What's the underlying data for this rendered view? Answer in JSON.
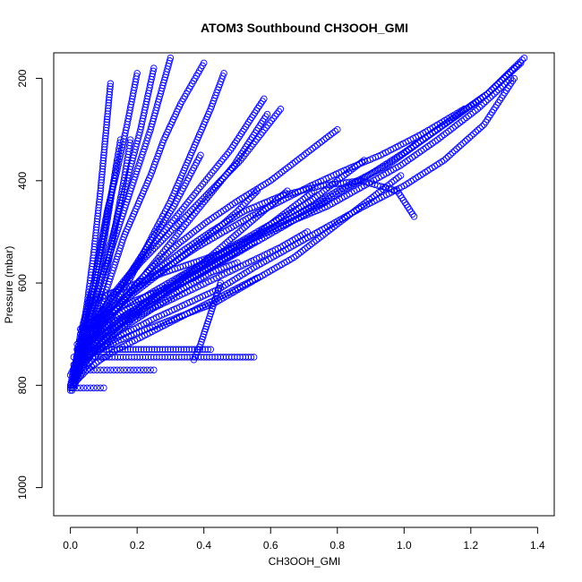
{
  "chart_data": {
    "type": "scatter",
    "title": "ATOM3 Southbound CH3OOH_GMI",
    "xlabel": "CH3OOH_GMI",
    "ylabel": "Pressure (mbar)",
    "xlim": [
      -0.05,
      1.45
    ],
    "ylim": [
      1055,
      150
    ],
    "y_reversed": true,
    "x_ticks": [
      0.0,
      0.2,
      0.4,
      0.6,
      0.8,
      1.0,
      1.2,
      1.4
    ],
    "x_tick_labels": [
      "0.0",
      "0.2",
      "0.4",
      "0.6",
      "0.8",
      "1.0",
      "1.2",
      "1.4"
    ],
    "y_ticks": [
      200,
      400,
      600,
      800,
      1000
    ],
    "y_tick_labels": [
      "200",
      "400",
      "600",
      "800",
      "1000"
    ],
    "grid": false,
    "marker": "open-circle",
    "color": "#0000FF",
    "series": [
      {
        "x": [
          0.01,
          0.015,
          0.02,
          0.03,
          0.04,
          0.06,
          0.09,
          0.12,
          0.15,
          0.18,
          0.21,
          0.24,
          0.27,
          0.3
        ],
        "y": [
          805,
          790,
          770,
          740,
          700,
          660,
          600,
          540,
          480,
          420,
          360,
          300,
          230,
          160
        ]
      },
      {
        "x": [
          0.01,
          0.02,
          0.03,
          0.05,
          0.07,
          0.1,
          0.13,
          0.16,
          0.2,
          0.24,
          0.28,
          0.33,
          0.4
        ],
        "y": [
          800,
          780,
          760,
          720,
          680,
          630,
          570,
          510,
          450,
          390,
          320,
          250,
          170
        ]
      },
      {
        "x": [
          0.005,
          0.01,
          0.02,
          0.03,
          0.05,
          0.07,
          0.09,
          0.11,
          0.14,
          0.17,
          0.2
        ],
        "y": [
          810,
          790,
          760,
          720,
          660,
          600,
          530,
          460,
          380,
          290,
          190
        ]
      },
      {
        "x": [
          0.01,
          0.03,
          0.06,
          0.1,
          0.15,
          0.2,
          0.26,
          0.33,
          0.41,
          0.5,
          0.6,
          0.7,
          0.8
        ],
        "y": [
          790,
          760,
          720,
          680,
          640,
          600,
          560,
          520,
          480,
          440,
          400,
          350,
          300
        ]
      },
      {
        "x": [
          0.02,
          0.05,
          0.1,
          0.17,
          0.25,
          0.34,
          0.44,
          0.55,
          0.67,
          0.8,
          0.95,
          1.1,
          1.25,
          1.36
        ],
        "y": [
          780,
          750,
          710,
          670,
          630,
          590,
          550,
          510,
          470,
          420,
          370,
          300,
          230,
          160
        ]
      },
      {
        "x": [
          0.01,
          0.04,
          0.09,
          0.15,
          0.22,
          0.3,
          0.38,
          0.47,
          0.56,
          0.65
        ],
        "y": [
          800,
          770,
          730,
          690,
          650,
          610,
          570,
          520,
          470,
          420
        ]
      },
      {
        "x": [
          0.02,
          0.08,
          0.16,
          0.25,
          0.35,
          0.45,
          0.55,
          0.66,
          0.77,
          0.88,
          1.0,
          1.12,
          1.24,
          1.33
        ],
        "y": [
          760,
          730,
          700,
          670,
          640,
          610,
          570,
          530,
          490,
          450,
          410,
          360,
          290,
          200
        ]
      },
      {
        "x": [
          0.0,
          0.03,
          0.07,
          0.12,
          0.18,
          0.25,
          0.33,
          0.42,
          0.52,
          0.63,
          0.75,
          0.87,
          0.98,
          1.03
        ],
        "y": [
          780,
          740,
          700,
          660,
          620,
          580,
          540,
          500,
          460,
          430,
          410,
          400,
          420,
          470
        ]
      },
      {
        "x": [
          0.01,
          0.05,
          0.1,
          0.16,
          0.23,
          0.31,
          0.39,
          0.47,
          0.55
        ],
        "y": [
          760,
          730,
          700,
          670,
          640,
          610,
          580,
          550,
          520
        ]
      },
      {
        "x": [
          0.02,
          0.06,
          0.12,
          0.19,
          0.27,
          0.35,
          0.43,
          0.5,
          0.56
        ],
        "y": [
          720,
          690,
          660,
          620,
          580,
          540,
          500,
          460,
          420
        ]
      },
      {
        "x": [
          0.005,
          0.02,
          0.04,
          0.06,
          0.08,
          0.1,
          0.12,
          0.14,
          0.16,
          0.18
        ],
        "y": [
          805,
          775,
          740,
          700,
          650,
          600,
          540,
          470,
          400,
          320
        ]
      },
      {
        "x": [
          0.0,
          0.01,
          0.02,
          0.04,
          0.06,
          0.08,
          0.1,
          0.12,
          0.14
        ],
        "y": [
          800,
          770,
          740,
          700,
          650,
          590,
          520,
          440,
          360
        ]
      },
      {
        "x": [
          0.01,
          0.04,
          0.08,
          0.13,
          0.19,
          0.26,
          0.34,
          0.43,
          0.53,
          0.64,
          0.76,
          0.88,
          1.0,
          1.12,
          1.25,
          1.35
        ],
        "y": [
          795,
          760,
          725,
          690,
          655,
          620,
          585,
          550,
          515,
          480,
          440,
          395,
          345,
          290,
          230,
          170
        ]
      },
      {
        "x": [
          0.03,
          0.07,
          0.12,
          0.18,
          0.24,
          0.31,
          0.38,
          0.46,
          0.54,
          0.63,
          0.72,
          0.82,
          0.93,
          1.05,
          1.18
        ],
        "y": [
          700,
          680,
          650,
          620,
          590,
          560,
          530,
          500,
          470,
          440,
          410,
          380,
          350,
          310,
          260
        ]
      },
      {
        "x": [
          0.02,
          0.06,
          0.11,
          0.17,
          0.24,
          0.32,
          0.4,
          0.48,
          0.56,
          0.64,
          0.72,
          0.8,
          0.88
        ],
        "y": [
          740,
          710,
          680,
          650,
          620,
          590,
          560,
          530,
          500,
          470,
          440,
          400,
          360
        ]
      },
      {
        "x": [
          0.01,
          0.03,
          0.06,
          0.1,
          0.14,
          0.19,
          0.24,
          0.29,
          0.34,
          0.39,
          0.44,
          0.49,
          0.54,
          0.59
        ],
        "y": [
          790,
          760,
          730,
          690,
          650,
          610,
          570,
          530,
          490,
          450,
          410,
          370,
          320,
          270
        ]
      },
      {
        "x": [
          0.02,
          0.05,
          0.09,
          0.14,
          0.2,
          0.27,
          0.34,
          0.42,
          0.5
        ],
        "y": [
          770,
          745,
          720,
          695,
          670,
          640,
          610,
          580,
          560
        ]
      },
      {
        "x": [
          0.04,
          0.1,
          0.17,
          0.25,
          0.33,
          0.41,
          0.49,
          0.57,
          0.65,
          0.73
        ],
        "y": [
          720,
          690,
          660,
          630,
          600,
          570,
          540,
          500,
          460,
          420
        ]
      },
      {
        "x": [
          0.01,
          0.03,
          0.05,
          0.08,
          0.11,
          0.15,
          0.19,
          0.23,
          0.27,
          0.31,
          0.35,
          0.39
        ],
        "y": [
          780,
          750,
          720,
          690,
          650,
          610,
          570,
          530,
          490,
          450,
          400,
          350
        ]
      },
      {
        "x": [
          0.05,
          0.12,
          0.2,
          0.28,
          0.37,
          0.46,
          0.56,
          0.66,
          0.77,
          0.88,
          0.99,
          1.1,
          1.22,
          1.32
        ],
        "y": [
          640,
          620,
          600,
          580,
          560,
          540,
          510,
          480,
          450,
          410,
          370,
          320,
          260,
          200
        ]
      },
      {
        "x": [
          0.02,
          0.08,
          0.15,
          0.23,
          0.31,
          0.39,
          0.47,
          0.55,
          0.63,
          0.71
        ],
        "y": [
          730,
          705,
          680,
          655,
          630,
          605,
          580,
          555,
          530,
          500
        ]
      },
      {
        "x": [
          0.0,
          0.02,
          0.05,
          0.09,
          0.14,
          0.2,
          0.26,
          0.32,
          0.38,
          0.44,
          0.5,
          0.56
        ],
        "y": [
          810,
          790,
          770,
          750,
          730,
          710,
          690,
          670,
          650,
          630,
          610,
          590
        ]
      },
      {
        "x": [
          0.01,
          0.06,
          0.12,
          0.19,
          0.27,
          0.35,
          0.43,
          0.51,
          0.59,
          0.67,
          0.75,
          0.83,
          0.91,
          0.99
        ],
        "y": [
          760,
          740,
          720,
          700,
          680,
          660,
          640,
          610,
          580,
          550,
          510,
          470,
          430,
          390
        ]
      },
      {
        "x": [
          0.03,
          0.08,
          0.14,
          0.21,
          0.29,
          0.37,
          0.45,
          0.53,
          0.61,
          0.69,
          0.77
        ],
        "y": [
          690,
          670,
          650,
          630,
          610,
          590,
          560,
          530,
          500,
          470,
          440
        ]
      },
      {
        "x": [
          0.01,
          0.02,
          0.04,
          0.07,
          0.1,
          0.14,
          0.18,
          0.22,
          0.26,
          0.3,
          0.34,
          0.38,
          0.42,
          0.46
        ],
        "y": [
          800,
          770,
          740,
          710,
          670,
          630,
          590,
          540,
          490,
          440,
          380,
          320,
          260,
          190
        ]
      },
      {
        "x": [
          0.02,
          0.04,
          0.07,
          0.11,
          0.16,
          0.21,
          0.27,
          0.33,
          0.39,
          0.45,
          0.51,
          0.57,
          0.63
        ],
        "y": [
          760,
          720,
          680,
          640,
          600,
          560,
          520,
          480,
          440,
          400,
          360,
          310,
          260
        ]
      },
      {
        "x": [
          0.01,
          0.03,
          0.05,
          0.07,
          0.09,
          0.11,
          0.13,
          0.15,
          0.17,
          0.19,
          0.21,
          0.23,
          0.25
        ],
        "y": [
          790,
          750,
          700,
          650,
          600,
          550,
          500,
          450,
          400,
          350,
          300,
          240,
          180
        ]
      },
      {
        "x": [
          0.0,
          0.01,
          0.02,
          0.03,
          0.04,
          0.05,
          0.06,
          0.07,
          0.08,
          0.09,
          0.1,
          0.11,
          0.12
        ],
        "y": [
          805,
          780,
          750,
          720,
          680,
          640,
          590,
          540,
          480,
          420,
          350,
          280,
          210
        ]
      },
      {
        "x": [
          0.02,
          0.05,
          0.09,
          0.13,
          0.18,
          0.23,
          0.28,
          0.33,
          0.38,
          0.43,
          0.48,
          0.53,
          0.58
        ],
        "y": [
          740,
          700,
          660,
          620,
          580,
          540,
          500,
          460,
          420,
          380,
          340,
          290,
          240
        ]
      },
      {
        "x": [
          0.01,
          0.02,
          0.03,
          0.05,
          0.07,
          0.09,
          0.11,
          0.13,
          0.15
        ],
        "y": [
          780,
          740,
          700,
          650,
          600,
          540,
          470,
          400,
          320
        ]
      },
      {
        "x": [
          0.01,
          0.05,
          0.1,
          0.15,
          0.2,
          0.25,
          0.3,
          0.35,
          0.4,
          0.45,
          0.5,
          0.55
        ],
        "y": [
          745,
          745,
          745,
          745,
          745,
          745,
          745,
          745,
          745,
          745,
          745,
          745
        ]
      },
      {
        "x": [
          0.02,
          0.06,
          0.1,
          0.14,
          0.18,
          0.22,
          0.26,
          0.3,
          0.34,
          0.38,
          0.42
        ],
        "y": [
          730,
          730,
          730,
          730,
          730,
          730,
          730,
          730,
          730,
          730,
          730
        ]
      },
      {
        "x": [
          0.01,
          0.04,
          0.07,
          0.1,
          0.13,
          0.16,
          0.19,
          0.22,
          0.25
        ],
        "y": [
          770,
          770,
          770,
          770,
          770,
          770,
          770,
          770,
          770
        ]
      },
      {
        "x": [
          0.0,
          0.02,
          0.04,
          0.06,
          0.08,
          0.1
        ],
        "y": [
          805,
          805,
          805,
          805,
          805,
          805
        ]
      },
      {
        "x": [
          0.37,
          0.39,
          0.41,
          0.43,
          0.45
        ],
        "y": [
          750,
          720,
          680,
          640,
          600
        ]
      }
    ]
  }
}
